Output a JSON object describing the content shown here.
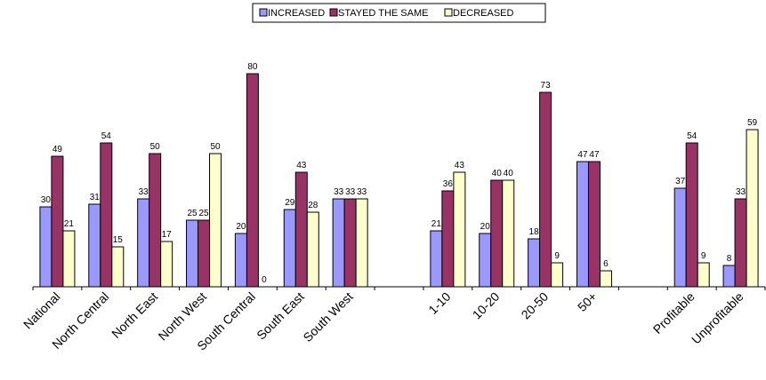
{
  "chart_data": {
    "type": "bar",
    "title": "",
    "xlabel": "",
    "ylabel": "",
    "ylim": [
      0,
      100
    ],
    "grid": false,
    "legend_position": "top-center",
    "series": [
      {
        "name": "INCREASED",
        "color": "#9999ff"
      },
      {
        "name": "STAYED THE SAME",
        "color": "#993366"
      },
      {
        "name": "DECREASED",
        "color": "#ffffcc"
      }
    ],
    "groups": [
      {
        "label": "National",
        "values": [
          30,
          49,
          21
        ]
      },
      {
        "label": "North Central",
        "values": [
          31,
          54,
          15
        ]
      },
      {
        "label": "North East",
        "values": [
          33,
          50,
          17
        ]
      },
      {
        "label": "North West",
        "values": [
          25,
          25,
          50
        ]
      },
      {
        "label": "South Central",
        "values": [
          20,
          80,
          0
        ]
      },
      {
        "label": "South East",
        "values": [
          29,
          43,
          28
        ]
      },
      {
        "label": "South West",
        "values": [
          33,
          33,
          33
        ]
      },
      {
        "label": "",
        "values": null
      },
      {
        "label": "1-10",
        "values": [
          21,
          36,
          43
        ]
      },
      {
        "label": "10-20",
        "values": [
          20,
          40,
          40
        ]
      },
      {
        "label": "20-50",
        "values": [
          18,
          73,
          9
        ]
      },
      {
        "label": "50+",
        "values": [
          47,
          47,
          6
        ]
      },
      {
        "label": "",
        "values": null
      },
      {
        "label": "Profitable",
        "values": [
          37,
          54,
          9
        ]
      },
      {
        "label": "Unprofitable",
        "values": [
          8,
          33,
          59
        ]
      }
    ]
  }
}
